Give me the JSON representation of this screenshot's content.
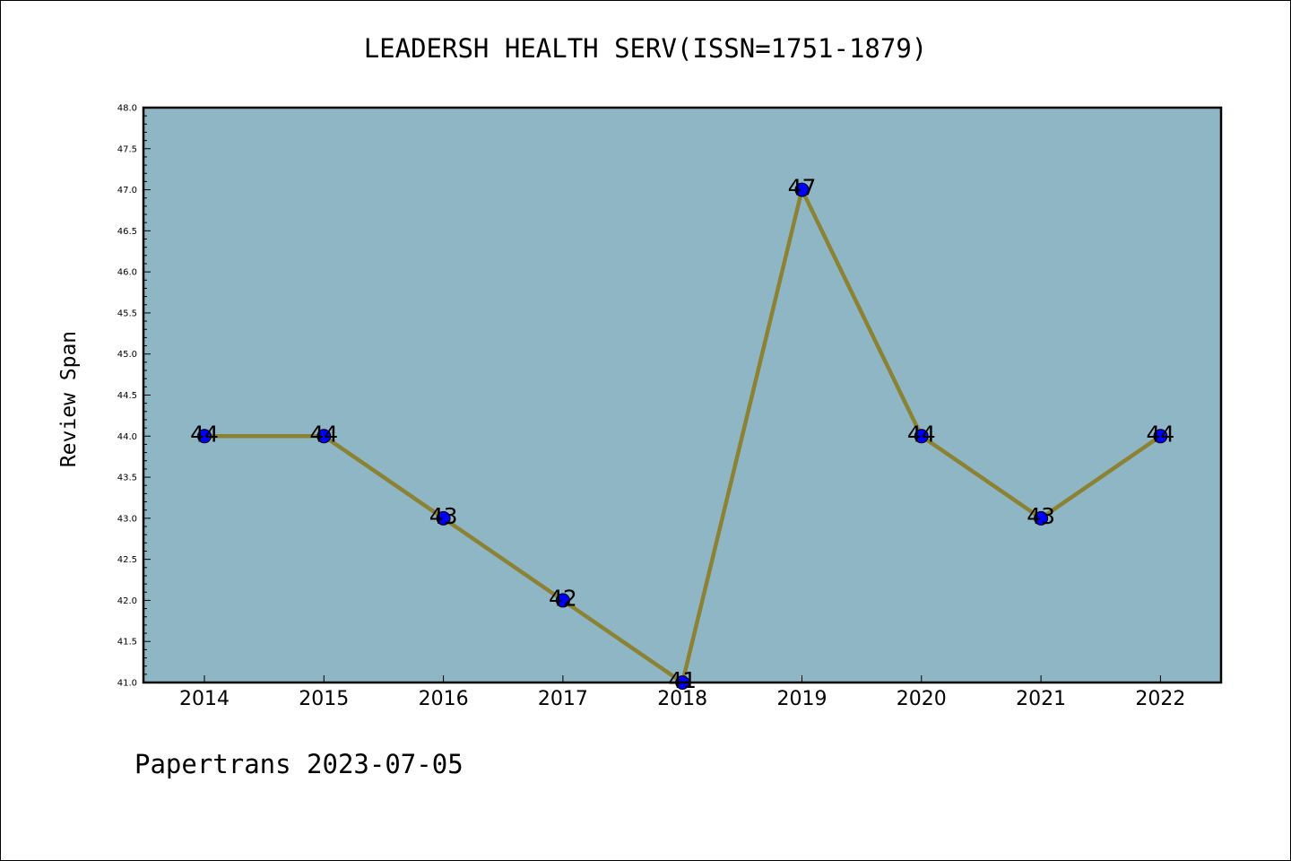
{
  "chart_data": {
    "type": "line",
    "title": "LEADERSH HEALTH SERV(ISSN=1751-1879)",
    "xlabel": "",
    "ylabel": "Review Span",
    "x": [
      "2014",
      "2015",
      "2016",
      "2017",
      "2018",
      "2019",
      "2020",
      "2021",
      "2022"
    ],
    "series": [
      {
        "values": [
          44,
          44,
          43,
          42,
          41,
          47,
          44,
          43,
          44
        ],
        "data_labels": [
          "44",
          "44",
          "43",
          "42",
          "41",
          "47",
          "44",
          "43",
          "44"
        ]
      }
    ],
    "ylim": [
      41.0,
      48.0
    ],
    "yticks": [
      "41.0",
      "41.5",
      "42.0",
      "42.5",
      "43.0",
      "43.5",
      "44.0",
      "44.5",
      "45.0",
      "45.5",
      "46.0",
      "46.5",
      "47.0",
      "47.5",
      "48.0"
    ],
    "grid": false,
    "legend": "none",
    "colors": {
      "plot_background": "#8fb6c4",
      "line": "#8c8234",
      "marker": "#0000ff",
      "axes": "#000000"
    }
  },
  "footer": "Papertrans 2023-07-05"
}
